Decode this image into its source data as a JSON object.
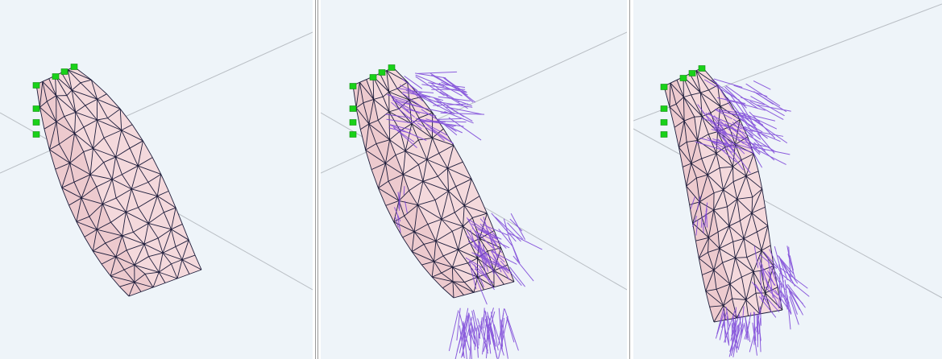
{
  "app": {
    "panels": [
      {
        "id": "undeformed-mesh",
        "show_forces": false
      },
      {
        "id": "mesh-with-forces",
        "show_forces": true
      },
      {
        "id": "deformed-mesh-with-forces",
        "show_forces": true
      }
    ]
  },
  "colors": {
    "background": "#eef4f9",
    "fill": "#f4d9dc",
    "fill_shade": "#e9c3c7",
    "edge": "#1c1c3a",
    "force": "#7a42d8",
    "anchor": "#19d219",
    "guide": "#b9bec4"
  },
  "icons": [
    "anchor-marker-icon"
  ]
}
